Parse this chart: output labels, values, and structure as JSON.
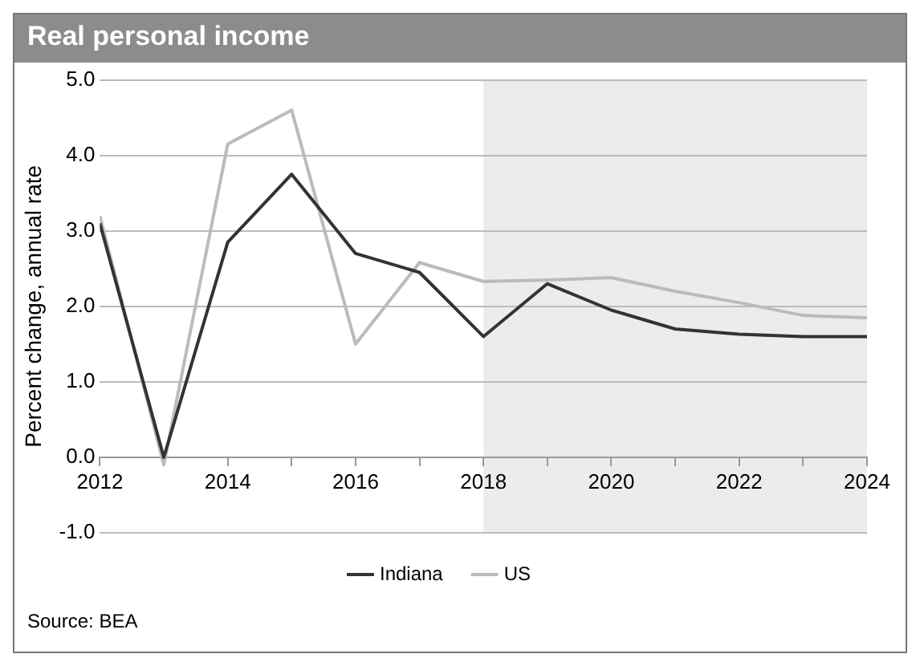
{
  "chart_data": {
    "type": "line",
    "title": "Real personal income",
    "ylabel": "Percent change, annual rate",
    "x": [
      2012,
      2013,
      2014,
      2015,
      2016,
      2017,
      2018,
      2019,
      2020,
      2021,
      2022,
      2023,
      2024
    ],
    "series": [
      {
        "name": "Indiana",
        "color": "#333333",
        "values": [
          3.1,
          0.0,
          2.85,
          3.75,
          2.7,
          2.45,
          1.6,
          2.3,
          1.95,
          1.7,
          1.63,
          1.6,
          1.6
        ]
      },
      {
        "name": "US",
        "color": "#bbbbbb",
        "values": [
          3.2,
          -0.1,
          4.15,
          4.6,
          1.5,
          2.58,
          2.33,
          2.35,
          2.38,
          2.2,
          2.05,
          1.88,
          1.85
        ]
      }
    ],
    "xlim": [
      2012,
      2024
    ],
    "xticks": [
      2012,
      {
        "value": 2013,
        "label": null
      },
      2014,
      {
        "value": 2015,
        "label": null
      },
      2016,
      {
        "value": 2017,
        "label": null
      },
      2018,
      {
        "value": 2019,
        "label": null
      },
      2020,
      {
        "value": 2021,
        "label": null
      },
      2022,
      {
        "value": 2023,
        "label": null
      },
      2024
    ],
    "ylim": [
      -1,
      5
    ],
    "yticks": [
      {
        "value": -1,
        "label": "-1.0"
      },
      {
        "value": 0,
        "label": "0.0"
      },
      {
        "value": 1,
        "label": "1.0"
      },
      {
        "value": 2,
        "label": "2.0"
      },
      {
        "value": 3,
        "label": "3.0"
      },
      {
        "value": 4,
        "label": "4.0"
      },
      {
        "value": 5,
        "label": "5.0"
      }
    ],
    "bands": [
      {
        "axis": "x",
        "from": 2018,
        "to": 2024,
        "color": "#ececec"
      }
    ],
    "grid": "y",
    "legend": "bottom",
    "marker": "none",
    "line_style": "solid",
    "annotations": [
      "Source: BEA"
    ]
  }
}
